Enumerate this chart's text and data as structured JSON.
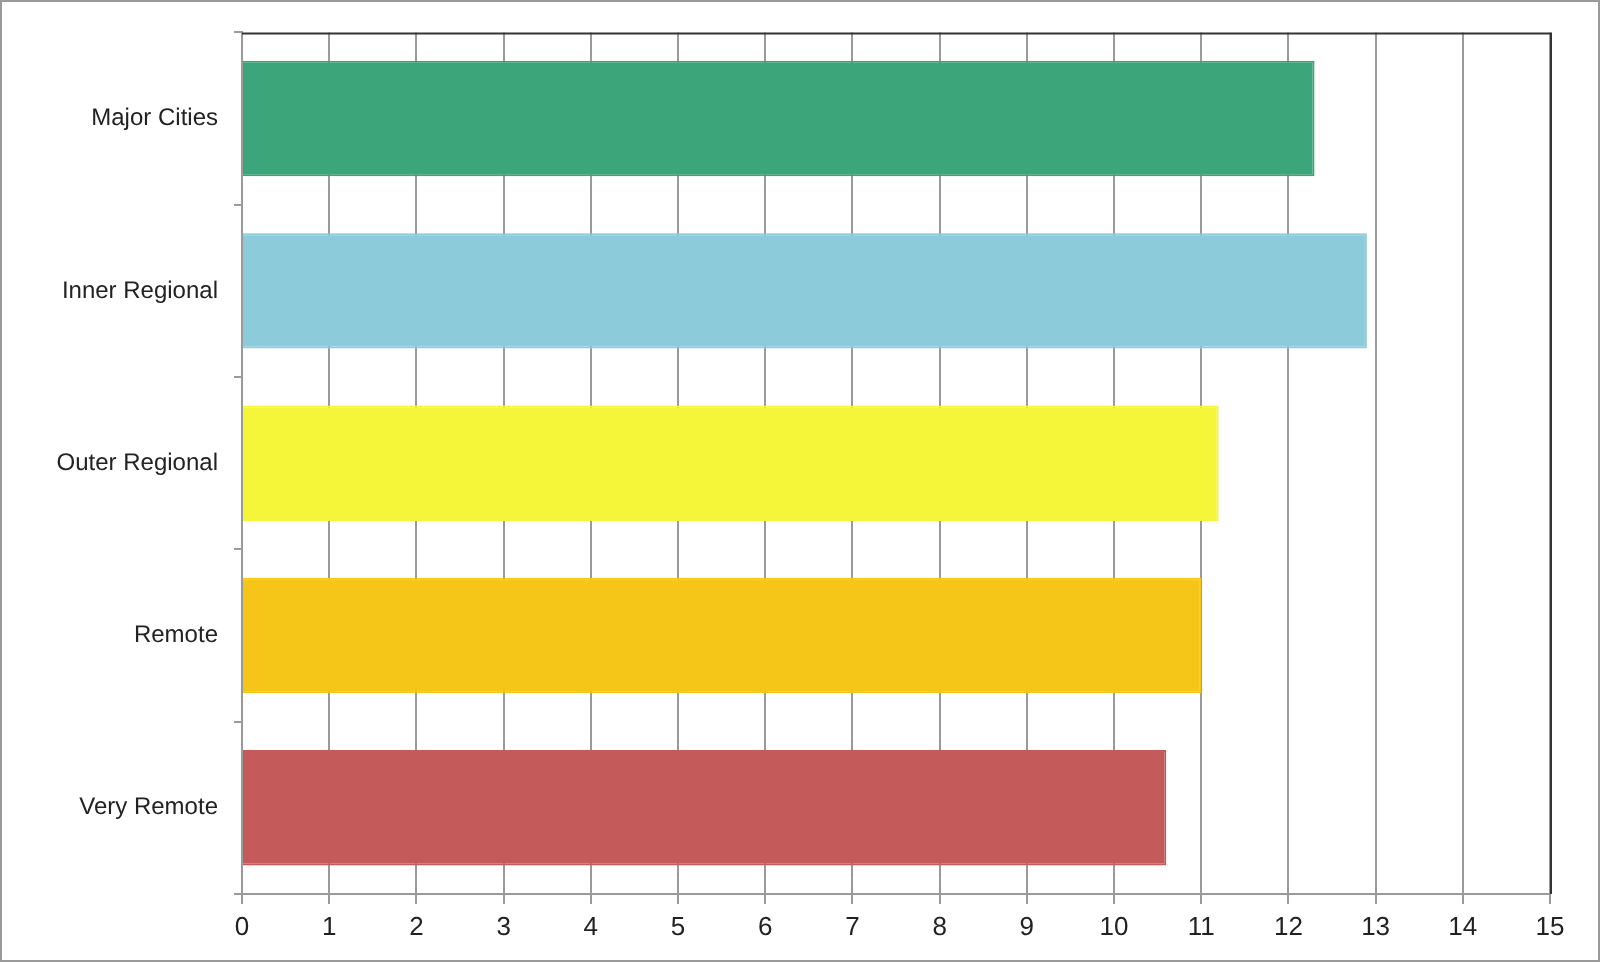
{
  "chart_data": {
    "type": "bar",
    "orientation": "horizontal",
    "categories": [
      "Major Cities",
      "Inner Regional",
      "Outer Regional",
      "Remote",
      "Very Remote"
    ],
    "values": [
      12.3,
      12.9,
      11.2,
      11.0,
      10.6
    ],
    "colors": [
      "#3da57a",
      "#8ccbd9",
      "#f5f53a",
      "#f5c518",
      "#c45a5a"
    ],
    "xlim": [
      0,
      15
    ],
    "xticks": [
      0,
      1,
      2,
      3,
      4,
      5,
      6,
      7,
      8,
      9,
      10,
      11,
      12,
      13,
      14,
      15
    ],
    "grid": "x"
  }
}
